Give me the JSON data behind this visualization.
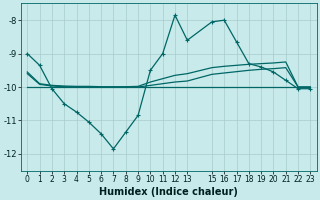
{
  "xlabel": "Humidex (Indice chaleur)",
  "bg_color": "#c8eaea",
  "grid_color": "#a8cccc",
  "line_color": "#006666",
  "ylim": [
    -12.5,
    -7.5
  ],
  "xlim": [
    -0.5,
    23.5
  ],
  "yticks": [
    -12,
    -11,
    -10,
    -9,
    -8
  ],
  "xticks": [
    0,
    1,
    2,
    3,
    4,
    5,
    6,
    7,
    8,
    9,
    10,
    11,
    12,
    13,
    15,
    16,
    17,
    18,
    19,
    20,
    21,
    22,
    23
  ],
  "x": [
    0,
    1,
    2,
    3,
    4,
    5,
    6,
    7,
    8,
    9,
    10,
    11,
    12,
    13,
    15,
    16,
    17,
    18,
    19,
    20,
    21,
    22,
    23
  ],
  "y_main": [
    -9.0,
    -9.35,
    -10.05,
    -10.5,
    -10.75,
    -11.05,
    -11.4,
    -11.85,
    -11.35,
    -10.85,
    -9.5,
    -9.0,
    -7.85,
    -8.6,
    -8.05,
    -8.0,
    -8.65,
    -9.3,
    -9.4,
    -9.55,
    -9.8,
    -10.05,
    -10.05
  ],
  "y_upper": [
    -9.55,
    -9.9,
    -9.95,
    -9.97,
    -9.98,
    -9.98,
    -9.99,
    -9.99,
    -9.99,
    -9.98,
    -9.85,
    -9.75,
    -9.65,
    -9.6,
    -9.42,
    -9.38,
    -9.35,
    -9.32,
    -9.3,
    -9.28,
    -9.25,
    -10.0,
    -10.0
  ],
  "y_mid": [
    -9.6,
    -9.92,
    -9.97,
    -9.99,
    -10.0,
    -10.0,
    -10.01,
    -10.01,
    -10.01,
    -10.0,
    -9.95,
    -9.9,
    -9.85,
    -9.82,
    -9.62,
    -9.58,
    -9.54,
    -9.5,
    -9.47,
    -9.45,
    -9.42,
    -10.0,
    -10.0
  ],
  "y_flat": [
    -10.0,
    -10.0,
    -10.0,
    -10.0,
    -10.0,
    -10.0,
    -10.0,
    -10.0,
    -10.0,
    -10.0,
    -10.0,
    -10.0,
    -10.0,
    -10.0,
    -10.0,
    -10.0,
    -10.0,
    -10.0,
    -10.0,
    -10.0,
    -10.0,
    -10.0,
    -10.0
  ]
}
